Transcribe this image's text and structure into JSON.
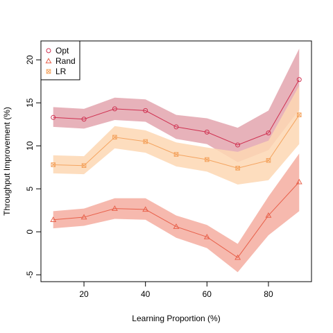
{
  "chart_data": {
    "type": "line",
    "xlabel": "Learning Proportion (%)",
    "ylabel": "Throughput Improvement (%)",
    "xlim": [
      6,
      94
    ],
    "ylim": [
      -5.8,
      22.2
    ],
    "xticks": [
      20,
      40,
      60,
      80
    ],
    "yticks": [
      -5,
      0,
      5,
      10,
      15,
      20
    ],
    "x": [
      10,
      20,
      30,
      40,
      50,
      60,
      70,
      80,
      90
    ],
    "legend_position": "top-left",
    "series": [
      {
        "name": "Opt",
        "marker": "circle",
        "line_color": "#cf3050",
        "band_color": "#e3a4ae",
        "values": [
          13.3,
          13.1,
          14.3,
          14.1,
          12.2,
          11.6,
          10.1,
          11.5,
          17.7
        ],
        "lower": [
          12.2,
          12.0,
          13.0,
          12.8,
          10.8,
          10.2,
          8.1,
          9.5,
          14.2
        ],
        "upper": [
          14.5,
          14.3,
          15.6,
          15.4,
          13.6,
          13.2,
          12.1,
          14.1,
          21.3
        ]
      },
      {
        "name": "Rand",
        "marker": "triangle",
        "line_color": "#e8604a",
        "band_color": "#f4ada0",
        "values": [
          1.4,
          1.7,
          2.7,
          2.6,
          0.6,
          -0.6,
          -3.0,
          1.9,
          5.8
        ],
        "lower": [
          0.4,
          0.7,
          1.5,
          1.4,
          -0.7,
          -1.9,
          -4.7,
          -0.4,
          2.4
        ],
        "upper": [
          2.4,
          2.7,
          3.9,
          3.9,
          1.9,
          0.8,
          -1.4,
          4.1,
          9.1
        ]
      },
      {
        "name": "LR",
        "marker": "square-x",
        "line_color": "#f4a460",
        "band_color": "#fdd7b3",
        "values": [
          7.8,
          7.7,
          11.0,
          10.5,
          9.0,
          8.4,
          7.4,
          8.3,
          13.6
        ],
        "lower": [
          6.8,
          6.7,
          9.7,
          9.2,
          7.6,
          7.0,
          5.5,
          6.0,
          10.2
        ],
        "upper": [
          8.9,
          8.8,
          12.3,
          11.8,
          10.4,
          9.8,
          9.3,
          10.6,
          17.0
        ]
      }
    ]
  }
}
